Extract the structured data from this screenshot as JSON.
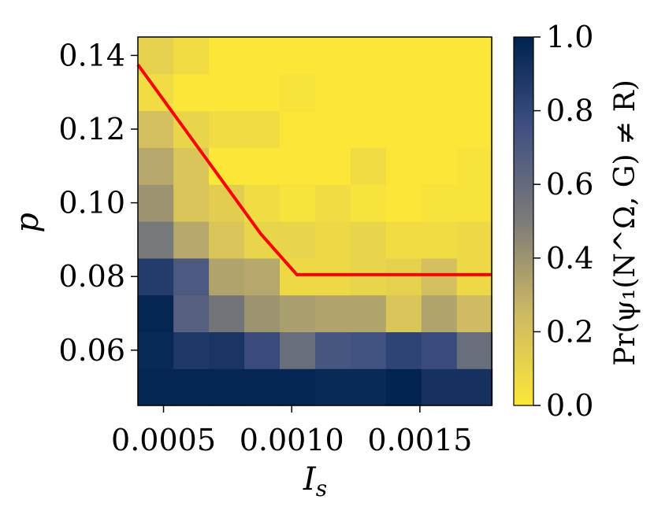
{
  "chart_data": {
    "type": "heatmap",
    "xlabel": "I",
    "xlabel_subscript": "s",
    "ylabel": "p",
    "x_ticks": [
      "0.0005",
      "0.0010",
      "0.0015"
    ],
    "y_ticks": [
      "0.06",
      "0.08",
      "0.10",
      "0.12",
      "0.14"
    ],
    "colorbar_label": "Pr(ψ₁(N^Ω, G) ≠ R)",
    "colorbar_ticks": [
      "0.0",
      "0.2",
      "0.4",
      "0.6",
      "0.8",
      "1.0"
    ],
    "colorbar_range": [
      0.0,
      1.0
    ],
    "colormap": "cividis_reversed",
    "xlim": [
      0.0004,
      0.00178
    ],
    "ylim": [
      0.045,
      0.145
    ],
    "x_centers": [
      0.0004696,
      0.0006078,
      0.0007459,
      0.0008841,
      0.0010222,
      0.0011604,
      0.0012985,
      0.0014367,
      0.0015748,
      0.001713
    ],
    "y_centers": [
      0.05,
      0.06,
      0.07,
      0.08,
      0.09,
      0.1,
      0.11,
      0.12,
      0.13,
      0.14
    ],
    "values": [
      [
        0.98,
        0.98,
        0.98,
        0.98,
        0.98,
        0.96,
        0.96,
        0.99,
        0.92,
        0.92
      ],
      [
        0.96,
        0.88,
        0.9,
        0.78,
        0.58,
        0.72,
        0.74,
        0.82,
        0.78,
        0.58
      ],
      [
        0.98,
        0.66,
        0.54,
        0.4,
        0.36,
        0.34,
        0.34,
        0.18,
        0.34,
        0.24
      ],
      [
        0.86,
        0.7,
        0.34,
        0.32,
        0.08,
        0.08,
        0.1,
        0.12,
        0.22,
        0.08
      ],
      [
        0.52,
        0.32,
        0.18,
        0.1,
        0.1,
        0.08,
        0.1,
        0.06,
        0.06,
        0.08
      ],
      [
        0.4,
        0.18,
        0.14,
        0.06,
        0.02,
        0.06,
        0.02,
        0.0,
        0.02,
        0.02
      ],
      [
        0.32,
        0.18,
        0.0,
        0.0,
        0.0,
        0.0,
        0.06,
        0.0,
        0.0,
        0.02
      ],
      [
        0.22,
        0.1,
        0.06,
        0.06,
        0.0,
        0.0,
        0.0,
        0.0,
        0.0,
        0.0
      ],
      [
        0.06,
        0.0,
        0.0,
        0.0,
        0.02,
        0.0,
        0.0,
        0.0,
        0.0,
        0.0
      ],
      [
        0.12,
        0.06,
        0.0,
        0.0,
        0.0,
        0.0,
        0.0,
        0.0,
        0.0,
        0.0
      ]
    ],
    "line": {
      "color": "#ff0000",
      "x": [
        0.0004,
        0.00088,
        0.00102,
        0.00178
      ],
      "y": [
        0.1375,
        0.0915,
        0.0805,
        0.0805
      ]
    },
    "grid": false
  }
}
